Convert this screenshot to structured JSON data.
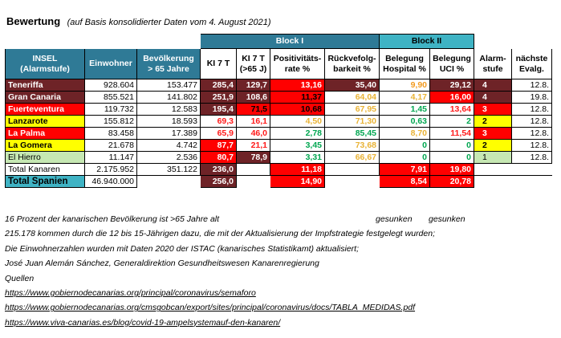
{
  "header": {
    "title": "Bewertung",
    "subtitle": "(auf Basis konsolidierter Daten vom 4. August 2021)"
  },
  "blocks": {
    "block1": "Block I",
    "block2": "Block II"
  },
  "columns": {
    "insel": "INSEL (Alarmstufe)",
    "einwohner": "Einwohner",
    "bevoelkerung": "Bevölkerung > 65 Jahre",
    "ki7t": "KI 7 T",
    "ki7t65": "KI 7 T (>65 J)",
    "positivitaet": "Positivitäts-rate %",
    "rueckverfolg": "Rückvefolg-barkeit %",
    "belegung_hosp": "Belegung Hospital %",
    "belegung_uci": "Belegung UCI %",
    "alarmstufe": "Alarm-stufe",
    "naechste": "nächste Evalg."
  },
  "colors": {
    "blue_header": "#2F7A96",
    "teal_header": "#3FB3C4",
    "maroon": "#6E2327",
    "red": "#FF0000",
    "orange": "#FF6600",
    "yellow": "#FFFF00",
    "light_green": "#C6E8B3",
    "green_text": "#00A650",
    "amber_text": "#E9B336"
  },
  "rows": [
    {
      "insel": "Teneriffa",
      "einwohner": "928.604",
      "bev65": "153.477",
      "ki7t": "285,4",
      "ki7t65": "129,7",
      "pos": "13,16",
      "rueck": "35,40",
      "hosp": "9,90",
      "uci": "29,12",
      "alarm": "4",
      "eval": "12.8."
    },
    {
      "insel": "Gran Canaria",
      "einwohner": "855.521",
      "bev65": "141.802",
      "ki7t": "251,9",
      "ki7t65": "108,6",
      "pos": "11,37",
      "rueck": "64,04",
      "hosp": "4,17",
      "uci": "16,00",
      "alarm": "4",
      "eval": "19.8."
    },
    {
      "insel": "Fuerteventura",
      "einwohner": "119.732",
      "bev65": "12.583",
      "ki7t": "195,4",
      "ki7t65": "71,5",
      "pos": "10,68",
      "rueck": "67,95",
      "hosp": "1,45",
      "uci": "13,64",
      "alarm": "3",
      "eval": "12.8."
    },
    {
      "insel": "Lanzarote",
      "einwohner": "155.812",
      "bev65": "18.593",
      "ki7t": "69,3",
      "ki7t65": "16,1",
      "pos": "4,50",
      "rueck": "71,30",
      "hosp": "0,63",
      "uci": "2",
      "alarm": "2",
      "eval": "12.8."
    },
    {
      "insel": "La Palma",
      "einwohner": "83.458",
      "bev65": "17.389",
      "ki7t": "65,9",
      "ki7t65": "46,0",
      "pos": "2,78",
      "rueck": "85,45",
      "hosp": "8,70",
      "uci": "11,54",
      "alarm": "3",
      "eval": "12.8."
    },
    {
      "insel": "La Gomera",
      "einwohner": "21.678",
      "bev65": "4.742",
      "ki7t": "87,7",
      "ki7t65": "21,1",
      "pos": "3,45",
      "rueck": "73,68",
      "hosp": "0",
      "uci": "0",
      "alarm": "2",
      "eval": "12.8."
    },
    {
      "insel": "El Hierro",
      "einwohner": "11.147",
      "bev65": "2.536",
      "ki7t": "80,7",
      "ki7t65": "78,9",
      "pos": "3,31",
      "rueck": "66,67",
      "hosp": "0",
      "uci": "0",
      "alarm": "1",
      "eval": "12.8."
    }
  ],
  "total_kanaren": {
    "label": "Total Kanaren",
    "einwohner": "2.175.952",
    "bev65": "351.122",
    "ki7t": "236,0",
    "pos": "11,18",
    "hosp": "7,91",
    "uci": "19,80"
  },
  "total_spanien": {
    "label": "Total Spanien",
    "einwohner": "46.940.000",
    "ki7t": "256,0",
    "pos": "14,90",
    "hosp": "8,54",
    "uci": "20,78"
  },
  "notes": {
    "line1": "16 Prozent der kanarischen Bevölkerung ist >65 Jahre alt",
    "gesunken1": "gesunken",
    "gesunken2": "gesunken",
    "line2": "215.178 kommen durch die 12 bis 15-Jährigen dazu, die mit der Aktualisierung der Impfstrategie festgelegt wurden;",
    "line3": "Die Einwohnerzahlen wurden mit Daten 2020 der ISTAC (kanarisches Statistikamt) aktualisiert;",
    "line4": "José Juan Alemán Sánchez, Generaldirektion Gesundheitswesen Kanarenregierung",
    "line5": "Quellen",
    "link1": "https://www.gobiernodecanarias.org/principal/coronavirus/semaforo",
    "link2": "https://www.gobiernodecanarias.org/cmsgobcan/export/sites/principal/coronavirus/docs/TABLA_MEDIDAS.pdf",
    "link3": "https://www.viva-canarias.es/blog/covid-19-ampelsystemauf-den-kanaren/"
  }
}
